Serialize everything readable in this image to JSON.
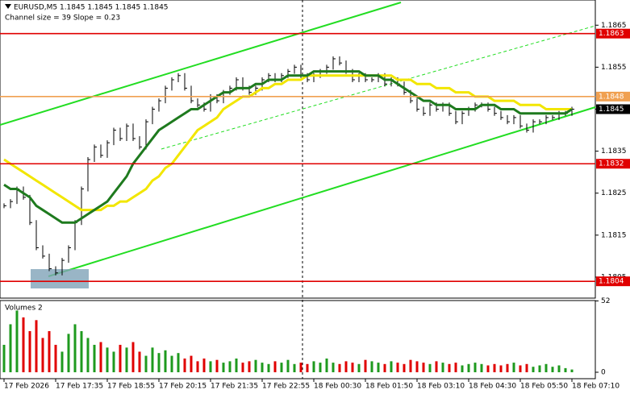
{
  "chart_data": {
    "type": "price-bars",
    "title": "EURUSD,M5  1.1845 1.1845 1.1845 1.1845",
    "subtitle": "Channel size = 39 Slope = 0.23",
    "volume_title": "Volumes 2",
    "ylim": [
      1.18,
      1.1871
    ],
    "yticks": [
      1.1865,
      1.1855,
      1.1845,
      1.1835,
      1.1825,
      1.1815,
      1.1805
    ],
    "levels": [
      {
        "value": 1.1863,
        "color": "#e00000"
      },
      {
        "value": 1.1848,
        "color": "#f0a050"
      },
      {
        "value": 1.1845,
        "color": "#000000"
      },
      {
        "value": 1.1832,
        "color": "#e00000"
      },
      {
        "value": 1.1804,
        "color": "#e00000"
      }
    ],
    "time_labels": [
      "17 Feb 2026",
      "17 Feb 17:35",
      "17 Feb 18:55",
      "17 Feb 20:15",
      "17 Feb 21:35",
      "17 Feb 22:55",
      "18 Feb 00:30",
      "18 Feb 01:50",
      "18 Feb 03:10",
      "18 Feb 04:30",
      "18 Feb 05:50",
      "18 Feb 07:10"
    ],
    "series": [
      {
        "color": "#000000",
        "values": [
          1.1822,
          1.1823,
          1.1826,
          1.1824,
          1.1818,
          1.1812,
          1.181,
          1.1807,
          1.1806,
          1.1809,
          1.1812,
          1.1818,
          1.1826,
          1.1833,
          1.1836,
          1.1834,
          1.1837,
          1.184,
          1.1838,
          1.1841,
          1.1838,
          1.1836,
          1.1842,
          1.1845,
          1.1847,
          1.185,
          1.1852,
          1.1853,
          1.185,
          1.1847,
          1.1846,
          1.1845,
          1.1848,
          1.1847,
          1.1849,
          1.185,
          1.1852,
          1.185,
          1.1849,
          1.185,
          1.1852,
          1.1853,
          1.1852,
          1.1853,
          1.1854,
          1.1855,
          1.1853,
          1.1852,
          1.1853,
          1.1854,
          1.1855,
          1.1857,
          1.1856,
          1.1854,
          1.1852,
          1.1853,
          1.1852,
          1.1852,
          1.1853,
          1.1851,
          1.1852,
          1.1851,
          1.1849,
          1.1847,
          1.1845,
          1.1844,
          1.1846,
          1.1845,
          1.1846,
          1.1844,
          1.1842,
          1.1844,
          1.1845,
          1.1846,
          1.1846,
          1.1845,
          1.1844,
          1.1843,
          1.1842,
          1.1843,
          1.1841,
          1.184,
          1.1842,
          1.1842,
          1.1843,
          1.1843,
          1.1844,
          1.1844,
          1.1845
        ]
      },
      {
        "color": "#f2e600",
        "values": [
          1.1833,
          1.1832,
          1.1831,
          1.183,
          1.1829,
          1.1828,
          1.1827,
          1.1826,
          1.1825,
          1.1824,
          1.1823,
          1.1822,
          1.1821,
          1.1821,
          1.1821,
          1.1821,
          1.1822,
          1.1822,
          1.1823,
          1.1823,
          1.1824,
          1.1825,
          1.1826,
          1.1828,
          1.1829,
          1.1831,
          1.1832,
          1.1834,
          1.1836,
          1.1838,
          1.184,
          1.1841,
          1.1842,
          1.1843,
          1.1845,
          1.1846,
          1.1847,
          1.1848,
          1.1848,
          1.1849,
          1.185,
          1.185,
          1.1851,
          1.1851,
          1.1852,
          1.1852,
          1.1852,
          1.1853,
          1.1853,
          1.1853,
          1.1853,
          1.1853,
          1.1853,
          1.1853,
          1.1853,
          1.1853,
          1.1853,
          1.1853,
          1.1853,
          1.1853,
          1.1853,
          1.1852,
          1.1852,
          1.1852,
          1.1851,
          1.1851,
          1.1851,
          1.185,
          1.185,
          1.185,
          1.1849,
          1.1849,
          1.1849,
          1.1848,
          1.1848,
          1.1848,
          1.1847,
          1.1847,
          1.1847,
          1.1847,
          1.1846,
          1.1846,
          1.1846,
          1.1846,
          1.1845,
          1.1845,
          1.1845,
          1.1845,
          1.1845
        ]
      },
      {
        "color": "#1e7a1e",
        "values": [
          1.1827,
          1.1826,
          1.1826,
          1.1825,
          1.1824,
          1.1822,
          1.1821,
          1.182,
          1.1819,
          1.1818,
          1.1818,
          1.1818,
          1.1819,
          1.182,
          1.1821,
          1.1822,
          1.1823,
          1.1825,
          1.1827,
          1.1829,
          1.1832,
          1.1834,
          1.1836,
          1.1838,
          1.184,
          1.1841,
          1.1842,
          1.1843,
          1.1844,
          1.1845,
          1.1845,
          1.1846,
          1.1847,
          1.1848,
          1.1849,
          1.1849,
          1.185,
          1.185,
          1.185,
          1.1851,
          1.1851,
          1.1852,
          1.1852,
          1.1852,
          1.1853,
          1.1853,
          1.1853,
          1.1853,
          1.1854,
          1.1854,
          1.1854,
          1.1854,
          1.1854,
          1.1854,
          1.1854,
          1.1854,
          1.1853,
          1.1853,
          1.1853,
          1.1852,
          1.1852,
          1.1851,
          1.185,
          1.1849,
          1.1848,
          1.1847,
          1.1847,
          1.1846,
          1.1846,
          1.1846,
          1.1845,
          1.1845,
          1.1845,
          1.1845,
          1.1846,
          1.1846,
          1.1846,
          1.1845,
          1.1845,
          1.1845,
          1.1844,
          1.1844,
          1.1844,
          1.1844,
          1.1844,
          1.1844,
          1.1844,
          1.1844,
          1.1845
        ]
      }
    ],
    "volumes": [
      20,
      35,
      45,
      40,
      30,
      38,
      25,
      30,
      20,
      15,
      28,
      35,
      30,
      25,
      20,
      22,
      18,
      15,
      20,
      18,
      22,
      15,
      12,
      18,
      14,
      16,
      12,
      14,
      10,
      12,
      8,
      10,
      8,
      9,
      7,
      8,
      10,
      7,
      8,
      9,
      7,
      6,
      8,
      7,
      9,
      6,
      7,
      6,
      8,
      7,
      10,
      7,
      6,
      8,
      7,
      6,
      9,
      8,
      7,
      6,
      8,
      7,
      6,
      9,
      8,
      7,
      6,
      8,
      7,
      6,
      7,
      5,
      6,
      7,
      6,
      5,
      6,
      5,
      6,
      7,
      5,
      6,
      4,
      5,
      6,
      4,
      5,
      3,
      2
    ],
    "volume_ylim": [
      0,
      57
    ],
    "volume_yticks": [
      52,
      0
    ],
    "up_color": "#1e9a1e",
    "down_color": "#e00000"
  }
}
